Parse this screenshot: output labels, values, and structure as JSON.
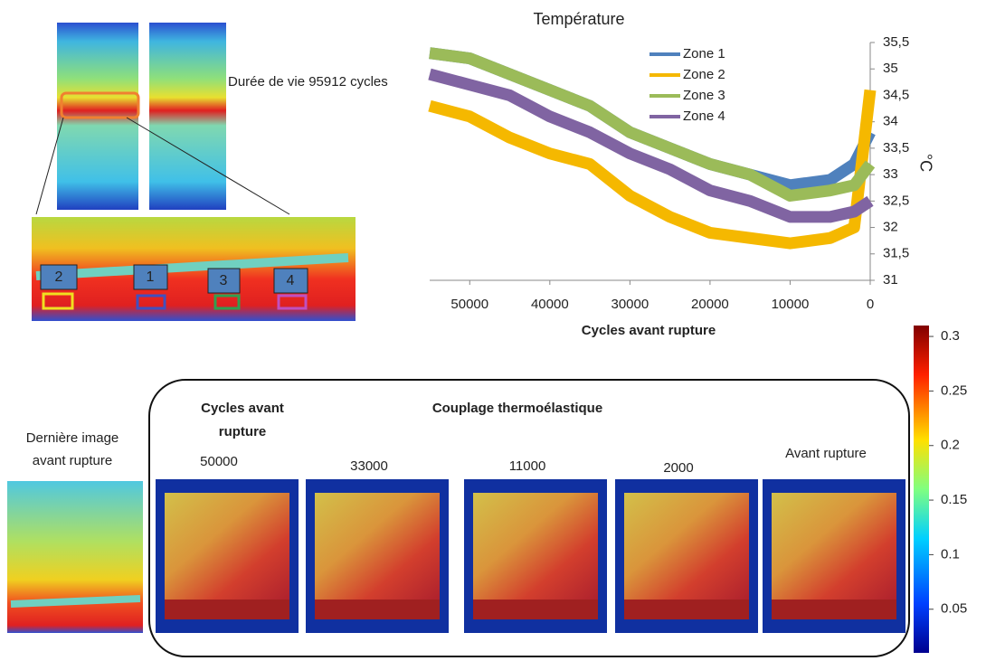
{
  "chart_data": {
    "type": "line",
    "title": "Température",
    "x_label": "Cycles avant rupture",
    "y_label": "°C",
    "x": [
      55000,
      50000,
      45000,
      40000,
      35000,
      30000,
      25000,
      20000,
      15000,
      10000,
      5000,
      2000,
      0
    ],
    "series": [
      {
        "name": "Zone 1",
        "color": "#4f81bd",
        "axis": "y2",
        "values": [
          35.3,
          35.2,
          34.9,
          34.6,
          34.3,
          33.8,
          33.5,
          33.2,
          33.0,
          32.8,
          32.9,
          33.2,
          33.8
        ]
      },
      {
        "name": "Zone 2",
        "color": "#f5b800",
        "axis": "y2",
        "values": [
          34.3,
          34.1,
          33.7,
          33.4,
          33.2,
          32.6,
          32.2,
          31.9,
          31.8,
          31.7,
          31.8,
          32.0,
          34.6
        ]
      },
      {
        "name": "Zone 3",
        "color": "#9bbb59",
        "axis": "y2",
        "values": [
          35.3,
          35.2,
          34.9,
          34.6,
          34.3,
          33.8,
          33.5,
          33.2,
          33.0,
          32.6,
          32.7,
          32.8,
          33.2
        ]
      },
      {
        "name": "Zone 4",
        "color": "#8064a2",
        "axis": "y2",
        "values": [
          34.9,
          34.7,
          34.5,
          34.1,
          33.8,
          33.4,
          33.1,
          32.7,
          32.5,
          32.2,
          32.2,
          32.3,
          32.5
        ]
      }
    ],
    "xlim": [
      55000,
      0
    ],
    "xticks": [
      50000,
      40000,
      30000,
      20000,
      10000,
      0
    ],
    "y2lim": [
      31,
      35.5
    ],
    "y2ticks": [
      31,
      {
        "value": 31.5,
        "label": "31,5"
      },
      32,
      {
        "value": 32.5,
        "label": "32,5"
      },
      33,
      {
        "value": 33.5,
        "label": "33,5"
      },
      34,
      {
        "value": 34.5,
        "label": "34,5"
      },
      35,
      {
        "value": 35.5,
        "label": "35,5"
      }
    ],
    "legend": "top-center"
  },
  "lifetime": "Durée de vie 95912 cycles",
  "zones": [
    "2",
    "1",
    "3",
    "4"
  ],
  "last_image": [
    "Dernière image",
    "avant rupture"
  ],
  "panel_title": [
    "Cycles avant",
    "rupture"
  ],
  "panel_subtitle": "Couplage thermoélastique",
  "panels": [
    "50000",
    "33000",
    "11000",
    "2000",
    "Avant rupture"
  ],
  "colorbar": {
    "lim": [
      0.01,
      0.31
    ],
    "ticks": [
      0.3,
      0.25,
      0.2,
      0.15,
      0.1,
      0.05
    ]
  }
}
